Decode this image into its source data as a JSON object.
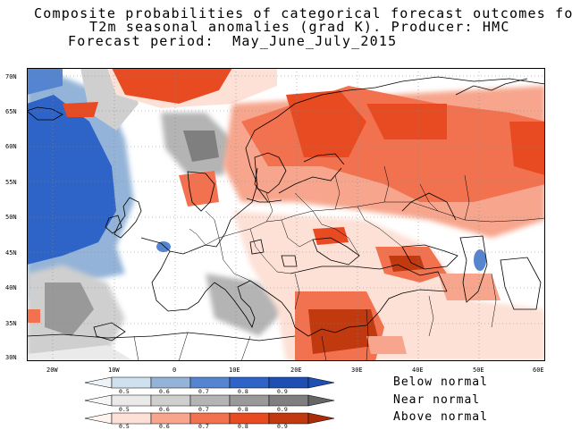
{
  "title": {
    "line1": "Composite probabilities of categorical forecast outcomes for",
    "line2": "T2m seasonal anomalies (grad K). Producer: HMC",
    "line3": "Forecast period:  May_June_July_2015"
  },
  "map": {
    "lat_labels": [
      "70N",
      "65N",
      "60N",
      "55N",
      "50N",
      "45N",
      "40N",
      "35N",
      "30N"
    ],
    "lon_labels": [
      "20W",
      "10W",
      "0",
      "10E",
      "20E",
      "30E",
      "40E",
      "50E",
      "60E"
    ],
    "lat_range": [
      30,
      70
    ],
    "lon_range": [
      -25,
      60
    ],
    "grid": "dotted"
  },
  "legend": {
    "below": {
      "label": "Below normal",
      "ticks": [
        "0.5",
        "0.6",
        "0.7",
        "0.8",
        "0.9"
      ],
      "colors": [
        "#cfe0ee",
        "#93b3d8",
        "#5585d1",
        "#2e63c8",
        "#1f4fb3"
      ]
    },
    "near": {
      "label": "Near normal",
      "ticks": [
        "0.5",
        "0.6",
        "0.7",
        "0.8",
        "0.9"
      ],
      "colors": [
        "#eaeaea",
        "#cfcfcf",
        "#b4b4b4",
        "#999999",
        "#7f7f7f"
      ]
    },
    "above": {
      "label": "Above normal",
      "ticks": [
        "0.5",
        "0.6",
        "0.7",
        "0.8",
        "0.9"
      ],
      "colors": [
        "#fde0d6",
        "#f7a58c",
        "#f27250",
        "#e84a22",
        "#c0390f"
      ]
    }
  }
}
